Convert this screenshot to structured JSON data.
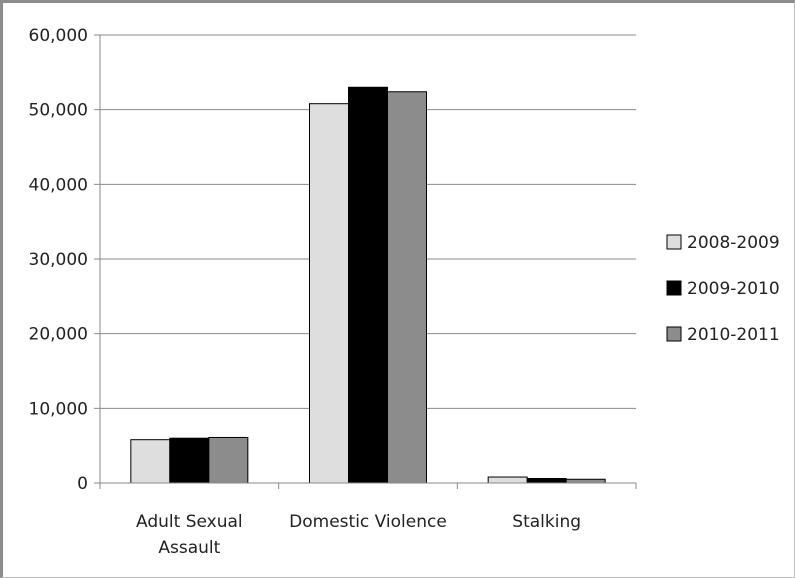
{
  "chart_data": {
    "type": "bar",
    "categories": [
      [
        "Adult Sexual",
        "Assault"
      ],
      [
        "Domestic Violence"
      ],
      [
        "Stalking"
      ]
    ],
    "series": [
      {
        "name": "2008-2009",
        "color": "#dedede",
        "values": [
          5800,
          50800,
          800
        ]
      },
      {
        "name": "2009-2010",
        "color": "#000000",
        "values": [
          6000,
          53000,
          600
        ]
      },
      {
        "name": "2010-2011",
        "color": "#8c8c8c",
        "values": [
          6100,
          52400,
          500
        ]
      }
    ],
    "y_ticks": [
      "0",
      "10,000",
      "20,000",
      "30,000",
      "40,000",
      "50,000",
      "60,000"
    ],
    "ylim": [
      0,
      60000
    ],
    "grid": true,
    "legend_position": "right",
    "title": "",
    "xlabel": "",
    "ylabel": ""
  }
}
